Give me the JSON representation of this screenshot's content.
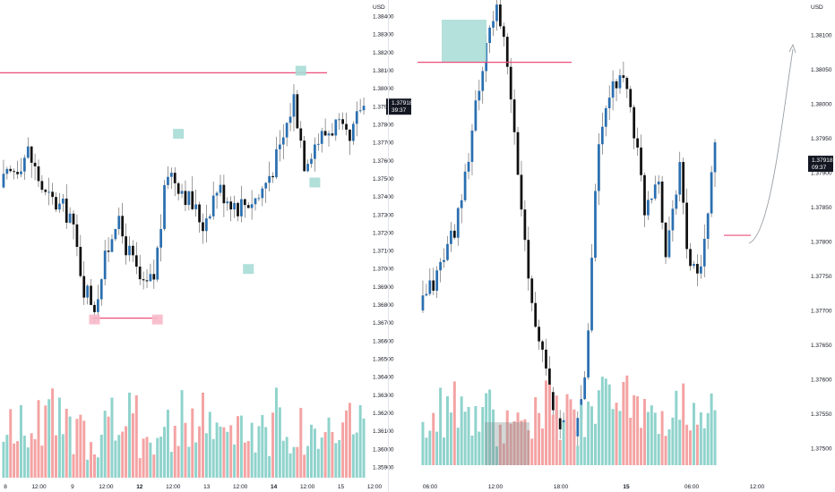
{
  "colors": {
    "bull": "#2a6fb0",
    "bear": "#101010",
    "volume_bull": "#8fd3cc",
    "volume_bear": "#f4a3a3",
    "level_line": "#ea4d7a",
    "highlight_teal": "#a8dcd6",
    "highlight_pink": "#f7b9c9",
    "volume_box": "#7f8c8d",
    "price_label_bg": "#131722",
    "axis_text": "#131722"
  },
  "chart_data": [
    {
      "type": "candlestick",
      "panel": "left",
      "currency": "USD",
      "last_price": "1.37918",
      "countdown": "39:37",
      "xticks": [
        "8",
        "12:00",
        "9",
        "12:00",
        "12",
        "12:00",
        "13",
        "12:00",
        "14",
        "12:00",
        "15",
        "12:00"
      ],
      "bold_xticks": [
        "12",
        "14"
      ],
      "yticks": [
        "1.38400",
        "1.38300",
        "1.38200",
        "1.38100",
        "1.38000",
        "1.37900",
        "1.37800",
        "1.37700",
        "1.37600",
        "1.37500",
        "1.37400",
        "1.37300",
        "1.37200",
        "1.37100",
        "1.37000",
        "1.36900",
        "1.36800",
        "1.36700",
        "1.36600",
        "1.36500",
        "1.36400",
        "1.36300",
        "1.36200",
        "1.36100",
        "1.36000",
        "1.35900"
      ],
      "ylim": [
        1.3585,
        1.3845
      ],
      "resistance_level": 1.38086,
      "support_level": 1.36725,
      "candle_count": 104,
      "anchors": [
        [
          0,
          1.3745
        ],
        [
          8,
          1.3765
        ],
        [
          13,
          1.374
        ],
        [
          20,
          1.373
        ],
        [
          24,
          1.369
        ],
        [
          27,
          1.368
        ],
        [
          33,
          1.3728
        ],
        [
          41,
          1.3688
        ],
        [
          44,
          1.3695
        ],
        [
          48,
          1.3755
        ],
        [
          52,
          1.3745
        ],
        [
          58,
          1.3725
        ],
        [
          62,
          1.3745
        ],
        [
          68,
          1.3735
        ],
        [
          74,
          1.374
        ],
        [
          80,
          1.3765
        ],
        [
          84,
          1.3795
        ],
        [
          87,
          1.376
        ],
        [
          90,
          1.377
        ],
        [
          96,
          1.378
        ],
        [
          100,
          1.3768
        ],
        [
          103,
          1.379
        ]
      ],
      "swing_points": [
        {
          "candle": 50,
          "kind": "high",
          "price": 1.3775,
          "marker": "teal"
        },
        {
          "candle": 70,
          "kind": "low",
          "price": 1.37,
          "marker": "teal"
        },
        {
          "candle": 85,
          "kind": "high",
          "price": 1.381,
          "marker": "teal"
        },
        {
          "candle": 89,
          "kind": "low",
          "price": 1.3748,
          "marker": "teal"
        },
        {
          "candle": 26,
          "kind": "low",
          "price": 1.3672,
          "marker": "pink"
        },
        {
          "candle": 44,
          "kind": "low",
          "price": 1.3672,
          "marker": "pink"
        }
      ]
    },
    {
      "type": "candlestick",
      "panel": "right",
      "currency": "USD",
      "last_price": "1.37918",
      "countdown": "09:37",
      "xticks": [
        "06:00",
        "12:00",
        "18:00",
        "15",
        "06:00",
        "12:00"
      ],
      "bold_xticks": [
        "15"
      ],
      "yticks": [
        "1.38100",
        "1.38050",
        "1.38000",
        "1.37950",
        "1.37900",
        "1.37850",
        "1.37800",
        "1.37750",
        "1.37700",
        "1.37650",
        "1.37600",
        "1.37550",
        "1.37500"
      ],
      "ylim": [
        1.3746,
        1.3814
      ],
      "level": 1.37809,
      "level_top": 1.3806,
      "candle_count": 84,
      "anchors": [
        [
          0,
          1.377
        ],
        [
          5,
          1.3775
        ],
        [
          12,
          1.3785
        ],
        [
          16,
          1.38
        ],
        [
          22,
          1.3815
        ],
        [
          25,
          1.3805
        ],
        [
          31,
          1.3775
        ],
        [
          38,
          1.3755
        ],
        [
          44,
          1.3752
        ],
        [
          47,
          1.376
        ],
        [
          51,
          1.3795
        ],
        [
          57,
          1.3805
        ],
        [
          60,
          1.38
        ],
        [
          64,
          1.3785
        ],
        [
          68,
          1.379
        ],
        [
          70,
          1.3778
        ],
        [
          74,
          1.3792
        ],
        [
          76,
          1.3778
        ],
        [
          80,
          1.3775
        ],
        [
          84,
          1.3793
        ]
      ]
    }
  ]
}
